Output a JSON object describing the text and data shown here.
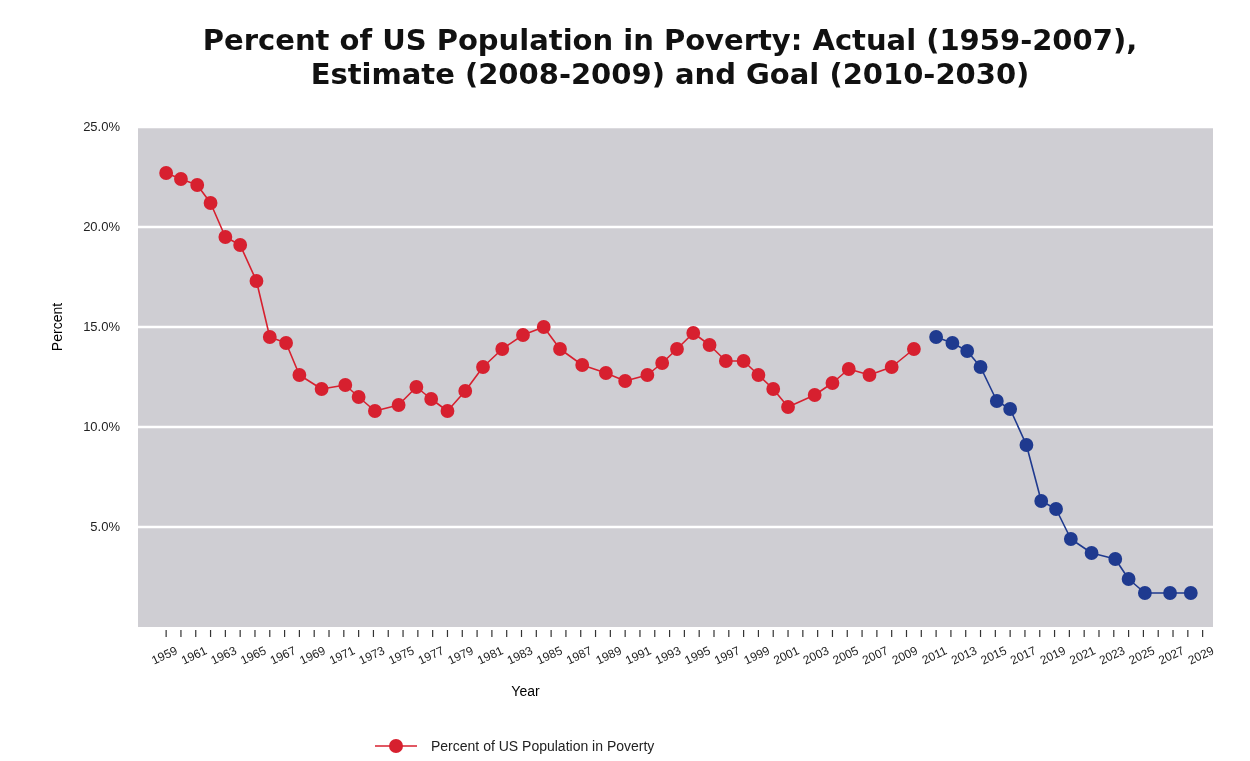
{
  "chart_data": {
    "type": "line",
    "title": "Percent of US Population in Poverty: Actual (1959-2007),\nEstimate (2008-2009) and Goal (2010-2030)",
    "xlabel": "Year",
    "ylabel": "Percent",
    "xlim": [
      1957.1,
      2029.7
    ],
    "ylim": [
      0,
      25
    ],
    "yticks": [
      {
        "value": 5,
        "label": "5.0%"
      },
      {
        "value": 10,
        "label": "10.0%"
      },
      {
        "value": 15,
        "label": "15.0%"
      },
      {
        "value": 20,
        "label": "20.0%"
      },
      {
        "value": 25,
        "label": "25.0%"
      }
    ],
    "xticks": [
      {
        "value": 1959,
        "label": "1959"
      },
      {
        "value": 1960,
        "label": null
      },
      {
        "value": 1961,
        "label": "1961"
      },
      {
        "value": 1962,
        "label": null
      },
      {
        "value": 1963,
        "label": "1963"
      },
      {
        "value": 1964,
        "label": null
      },
      {
        "value": 1965,
        "label": "1965"
      },
      {
        "value": 1966,
        "label": null
      },
      {
        "value": 1967,
        "label": "1967"
      },
      {
        "value": 1968,
        "label": null
      },
      {
        "value": 1969,
        "label": "1969"
      },
      {
        "value": 1970,
        "label": null
      },
      {
        "value": 1971,
        "label": "1971"
      },
      {
        "value": 1972,
        "label": null
      },
      {
        "value": 1973,
        "label": "1973"
      },
      {
        "value": 1974,
        "label": null
      },
      {
        "value": 1975,
        "label": "1975"
      },
      {
        "value": 1976,
        "label": null
      },
      {
        "value": 1977,
        "label": "1977"
      },
      {
        "value": 1978,
        "label": null
      },
      {
        "value": 1979,
        "label": "1979"
      },
      {
        "value": 1980,
        "label": null
      },
      {
        "value": 1981,
        "label": "1981"
      },
      {
        "value": 1982,
        "label": null
      },
      {
        "value": 1983,
        "label": "1983"
      },
      {
        "value": 1984,
        "label": null
      },
      {
        "value": 1985,
        "label": "1985"
      },
      {
        "value": 1986,
        "label": null
      },
      {
        "value": 1987,
        "label": "1987"
      },
      {
        "value": 1988,
        "label": null
      },
      {
        "value": 1989,
        "label": "1989"
      },
      {
        "value": 1990,
        "label": null
      },
      {
        "value": 1991,
        "label": "1991"
      },
      {
        "value": 1992,
        "label": null
      },
      {
        "value": 1993,
        "label": "1993"
      },
      {
        "value": 1994,
        "label": null
      },
      {
        "value": 1995,
        "label": "1995"
      },
      {
        "value": 1996,
        "label": null
      },
      {
        "value": 1997,
        "label": "1997"
      },
      {
        "value": 1998,
        "label": null
      },
      {
        "value": 1999,
        "label": "1999"
      },
      {
        "value": 2000,
        "label": null
      },
      {
        "value": 2001,
        "label": "2001"
      },
      {
        "value": 2002,
        "label": null
      },
      {
        "value": 2003,
        "label": "2003"
      },
      {
        "value": 2004,
        "label": null
      },
      {
        "value": 2005,
        "label": "2005"
      },
      {
        "value": 2006,
        "label": null
      },
      {
        "value": 2007,
        "label": "2007"
      },
      {
        "value": 2008,
        "label": null
      },
      {
        "value": 2009,
        "label": "2009"
      },
      {
        "value": 2010,
        "label": null
      },
      {
        "value": 2011,
        "label": "2011"
      },
      {
        "value": 2012,
        "label": null
      },
      {
        "value": 2013,
        "label": "2013"
      },
      {
        "value": 2014,
        "label": null
      },
      {
        "value": 2015,
        "label": "2015"
      },
      {
        "value": 2016,
        "label": null
      },
      {
        "value": 2017,
        "label": "2017"
      },
      {
        "value": 2018,
        "label": null
      },
      {
        "value": 2019,
        "label": "2019"
      },
      {
        "value": 2020,
        "label": null
      },
      {
        "value": 2021,
        "label": "2021"
      },
      {
        "value": 2022,
        "label": null
      },
      {
        "value": 2023,
        "label": "2023"
      },
      {
        "value": 2024,
        "label": null
      },
      {
        "value": 2025,
        "label": "2025"
      },
      {
        "value": 2026,
        "label": null
      },
      {
        "value": 2027,
        "label": "2027"
      },
      {
        "value": 2028,
        "label": null
      },
      {
        "value": 2029,
        "label": "2029"
      }
    ],
    "grid": "y",
    "legend": "bottom",
    "marker": "circle",
    "line_style": "solid",
    "series": [
      {
        "name": "Percent of US Population in Poverty",
        "color": "#d7202f",
        "x": [
          1959,
          1960,
          1961.1,
          1962,
          1963,
          1964,
          1965.1,
          1966,
          1967.1,
          1968,
          1969.5,
          1971.1,
          1972,
          1973.1,
          1974.7,
          1975.9,
          1976.9,
          1978,
          1979.2,
          1980.4,
          1981.7,
          1983.1,
          1984.5,
          1985.6,
          1987.1,
          1988.7,
          1990,
          1991.5,
          1992.5,
          1993.5,
          1994.6,
          1995.7,
          1996.8,
          1998,
          1999,
          2000,
          2001,
          2002.8,
          2004,
          2005.1,
          2006.5,
          2008,
          2009.5
        ],
        "values": [
          22.7,
          22.4,
          22.1,
          21.2,
          19.5,
          19.1,
          17.3,
          14.5,
          14.2,
          12.6,
          11.9,
          12.1,
          11.5,
          10.8,
          11.1,
          12.0,
          11.4,
          10.8,
          11.8,
          13.0,
          13.9,
          14.6,
          15.0,
          13.9,
          13.1,
          12.7,
          12.3,
          12.6,
          13.2,
          13.9,
          14.7,
          14.1,
          13.3,
          13.3,
          12.6,
          11.9,
          11.0,
          11.6,
          12.2,
          12.9,
          12.6,
          13.0,
          13.9
        ]
      },
      {
        "color": "#1f3a8f",
        "x": [
          2011,
          2012.1,
          2013.1,
          2014,
          2015.1,
          2016,
          2017.1,
          2018.1,
          2019.1,
          2020.1,
          2021.5,
          2023.1,
          2024,
          2025.1,
          2026.8,
          2028.2
        ],
        "values": [
          14.5,
          14.2,
          13.8,
          13.0,
          11.3,
          10.9,
          9.1,
          6.3,
          5.9,
          4.4,
          3.7,
          3.4,
          2.4,
          1.7,
          1.7,
          1.7
        ]
      }
    ]
  }
}
